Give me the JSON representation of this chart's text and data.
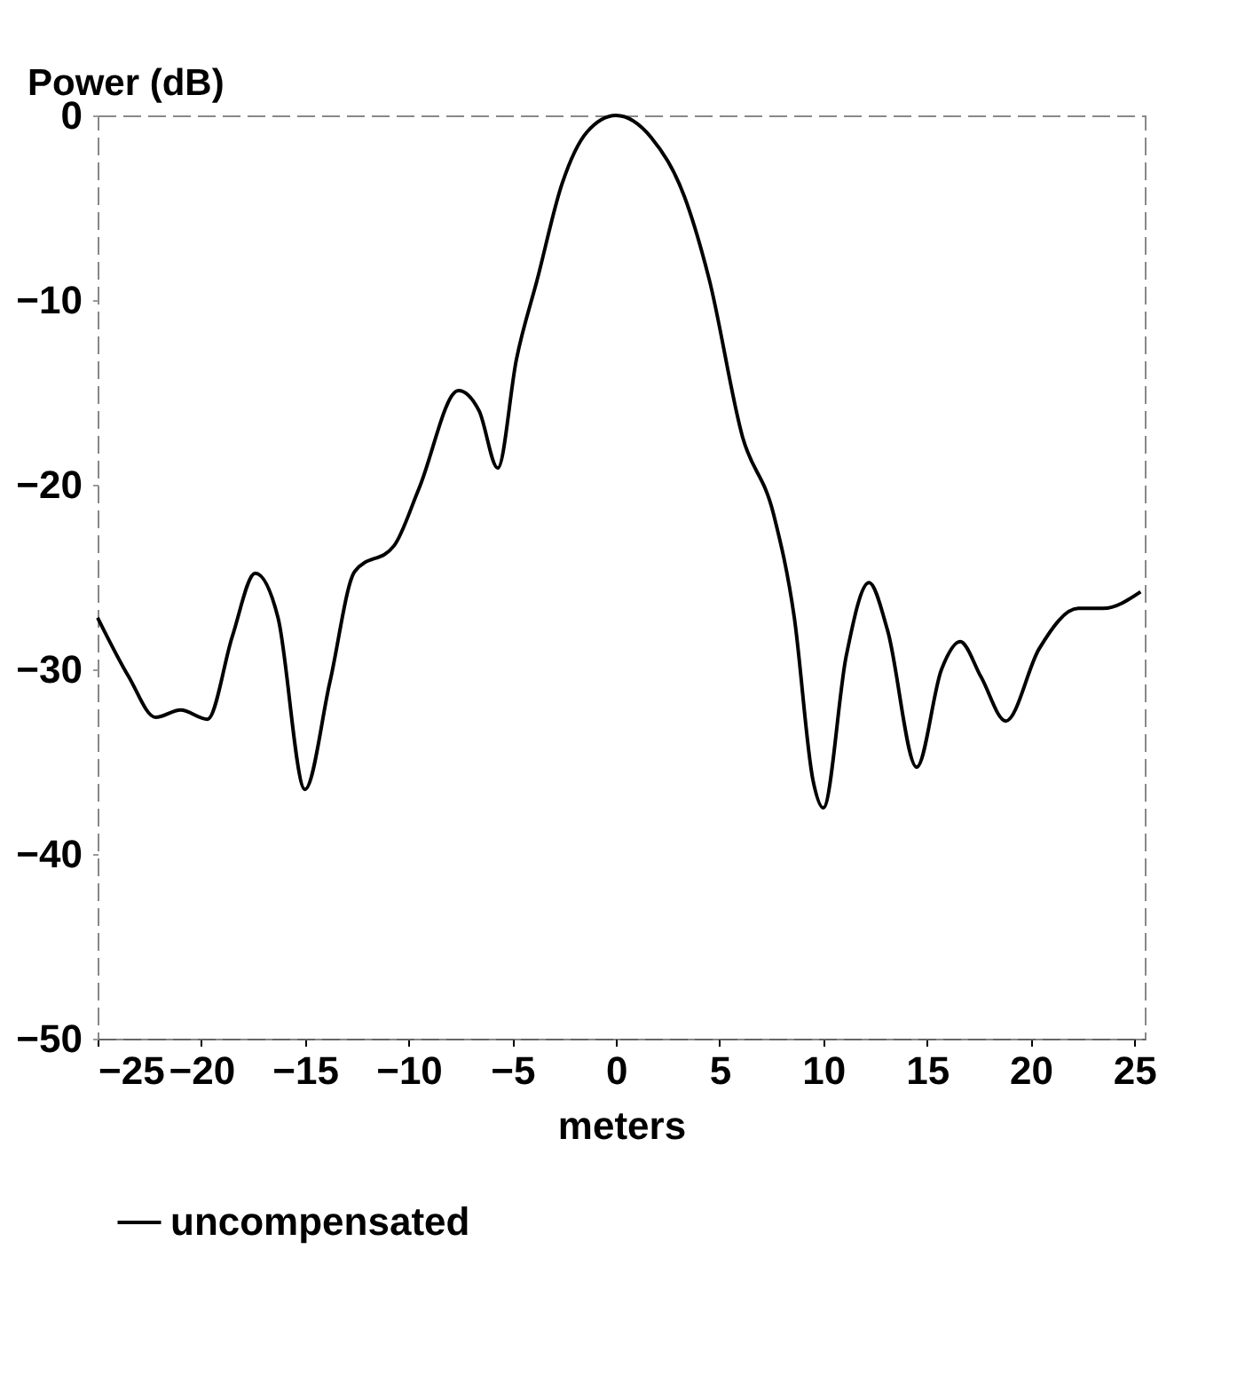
{
  "chart_data": {
    "type": "line",
    "xlabel": "meters",
    "ylabel": "Power (dB)",
    "legend": "bottom",
    "marker": "none",
    "line_style": "solid",
    "grid": false,
    "xlim": [
      -25,
      25.5
    ],
    "xticks": [
      -25,
      -20,
      -15,
      -10,
      -5,
      0,
      5,
      10,
      15,
      20,
      25
    ],
    "ylim": [
      -50,
      0
    ],
    "yticks": [
      -50,
      -40,
      -30,
      -20,
      -10,
      0
    ],
    "series": [
      {
        "name": "uncompensated",
        "color": "#000000",
        "x": [
          -25.0,
          -23.5,
          -22.2,
          -21.0,
          -19.7,
          -18.5,
          -17.4,
          -16.3,
          -15.0,
          -13.8,
          -12.6,
          -10.7,
          -9.5,
          -7.6,
          -6.6,
          -5.7,
          -4.8,
          -3.8,
          -2.6,
          -1.4,
          0,
          1.7,
          3.3,
          4.5,
          6.1,
          7.6,
          8.6,
          9.5,
          10.0,
          11.1,
          12.2,
          13.1,
          14.5,
          15.7,
          16.6,
          17.6,
          18.8,
          20.4,
          22.3,
          23.5,
          25.3
        ],
        "values": [
          -27.2,
          -30.4,
          -32.6,
          -32.2,
          -32.7,
          -28.2,
          -24.8,
          -27.2,
          -36.5,
          -30.7,
          -24.7,
          -23.3,
          -20.2,
          -14.9,
          -16.0,
          -19.1,
          -13.2,
          -8.9,
          -3.7,
          -0.9,
          0,
          -1.2,
          -4.4,
          -8.9,
          -17.4,
          -21.6,
          -27.2,
          -36.0,
          -37.5,
          -29.3,
          -25.3,
          -27.9,
          -35.3,
          -30.0,
          -28.5,
          -30.4,
          -32.8,
          -28.9,
          -26.7,
          -26.7,
          -25.8
        ]
      }
    ]
  }
}
